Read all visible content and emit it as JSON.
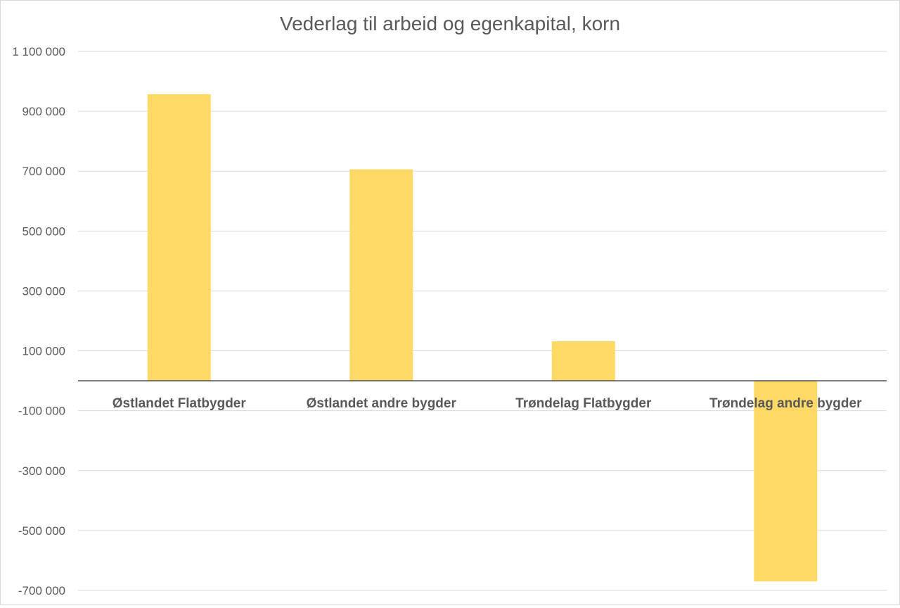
{
  "chart_data": {
    "type": "bar",
    "title": "Vederlag til arbeid og egenkapital, korn",
    "xlabel": "",
    "ylabel": "",
    "categories": [
      "Østlandet Flatbygder",
      "Østlandet andre bygder",
      "Trøndelag Flatbygder",
      "Trøndelag andre bygder"
    ],
    "values": [
      957000,
      706000,
      132000,
      -670000
    ],
    "ylim": [
      -700000,
      1100000
    ],
    "yticks": [
      1100000,
      900000,
      700000,
      500000,
      300000,
      100000,
      -100000,
      -300000,
      -500000,
      -700000
    ],
    "ytick_labels": [
      "1 100 000",
      "900 000",
      "700 000",
      "500 000",
      "300 000",
      "100 000",
      "-100 000",
      "-300 000",
      "-500 000",
      "-700 000"
    ],
    "grid": true,
    "legend": "none",
    "bar_color": "#FFD966"
  }
}
